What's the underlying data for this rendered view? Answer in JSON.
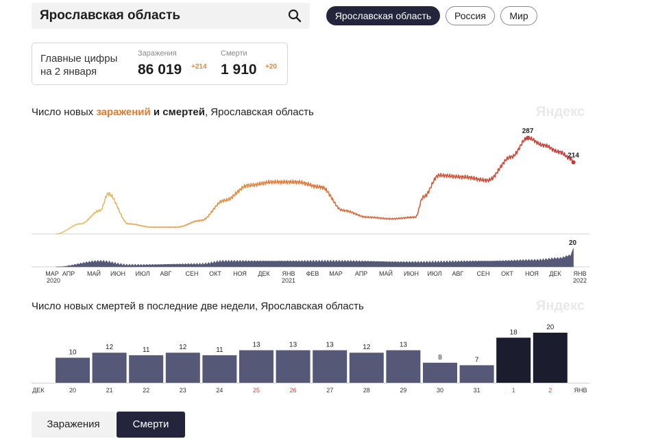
{
  "search": {
    "value": "Ярославская область"
  },
  "regions": [
    {
      "label": "Ярославская область",
      "active": true
    },
    {
      "label": "Россия",
      "active": false
    },
    {
      "label": "Мир",
      "active": false
    }
  ],
  "summary": {
    "title_line1": "Главные цифры",
    "title_line2": "на 2 января",
    "cases": {
      "label": "Заражения",
      "value": "86 019",
      "delta": "+214"
    },
    "deaths": {
      "label": "Смерти",
      "value": "1 910",
      "delta": "+20"
    }
  },
  "chart1": {
    "title_pre": "Число новых ",
    "title_cases": "заражений",
    "title_mid": " и смертей",
    "title_post": ", Ярославская область",
    "brand": "Яндекс"
  },
  "chart2": {
    "title": "Число новых смертей в последние две недели, Ярославская область",
    "brand": "Яндекс"
  },
  "tabs": {
    "cases": "Заражения",
    "deaths": "Смерти"
  },
  "colors": {
    "accent_dark": "#24253c",
    "cases_start": "#e8c26a",
    "cases_end": "#c43a3a",
    "deaths_bars": "#565878",
    "last_days": "#1b1c2e"
  },
  "chart_data": [
    {
      "type": "line",
      "title": "Число новых заражений и смертей, Ярославская область",
      "series": [
        {
          "name": "заражения",
          "x": [
            "2020-03-15",
            "2020-04-15",
            "2020-05-10",
            "2020-05-20",
            "2020-06-15",
            "2020-07-15",
            "2020-08-15",
            "2020-09-15",
            "2020-10-15",
            "2020-11-15",
            "2020-12-15",
            "2021-01-15",
            "2021-02-15",
            "2021-03-15",
            "2021-04-15",
            "2021-05-15",
            "2021-06-15",
            "2021-06-25",
            "2021-07-15",
            "2021-08-15",
            "2021-09-15",
            "2021-10-15",
            "2021-11-05",
            "2021-11-25",
            "2021-12-15",
            "2021-12-30",
            "2022-01-02"
          ],
          "y": [
            0,
            30,
            70,
            120,
            30,
            20,
            20,
            40,
            100,
            145,
            155,
            155,
            140,
            70,
            50,
            45,
            50,
            110,
            175,
            170,
            160,
            230,
            287,
            265,
            245,
            225,
            214
          ]
        }
      ],
      "annotations": [
        {
          "x": "2021-11-05",
          "label": "287"
        },
        {
          "x": "2022-01-02",
          "label": "214"
        }
      ],
      "x_ticks": [
        "МАР",
        "АПР",
        "МАЙ",
        "ИЮН",
        "ИЮЛ",
        "АВГ",
        "СЕН",
        "ОКТ",
        "НОЯ",
        "ДЕК",
        "ЯНВ",
        "ФЕВ",
        "МАР",
        "АПР",
        "МАЙ",
        "ИЮН",
        "ИЮЛ",
        "АВГ",
        "СЕН",
        "ОКТ",
        "НОЯ",
        "ДЕК",
        "ЯНВ"
      ],
      "x_year_labels": [
        "2020",
        "2021",
        "2022"
      ]
    },
    {
      "type": "bar",
      "title": "Число новых смертей, Ярославская область",
      "x": [
        "2020-03-15",
        "2020-05-10",
        "2020-06-15",
        "2020-09-15",
        "2020-10-15",
        "2020-12-15",
        "2021-03-15",
        "2021-06-15",
        "2021-09-15",
        "2021-11-15",
        "2021-12-15",
        "2021-12-30",
        "2022-01-02"
      ],
      "y": [
        0,
        6,
        2,
        3,
        6,
        6,
        6,
        5,
        6,
        7,
        9,
        12,
        20
      ],
      "annotations": [
        {
          "x": "2022-01-02",
          "label": "20"
        }
      ]
    },
    {
      "type": "bar",
      "title": "Число новых смертей в последние две недели, Ярославская область",
      "categories": [
        "20",
        "21",
        "22",
        "23",
        "24",
        "25",
        "26",
        "27",
        "28",
        "29",
        "30",
        "31",
        "1",
        "2"
      ],
      "values": [
        10,
        12,
        11,
        12,
        11,
        13,
        13,
        13,
        12,
        13,
        8,
        7,
        18,
        20
      ],
      "holidays": [
        "25",
        "26",
        "1",
        "2"
      ],
      "month_left": "ДЕК",
      "month_right": "ЯНВ"
    }
  ]
}
